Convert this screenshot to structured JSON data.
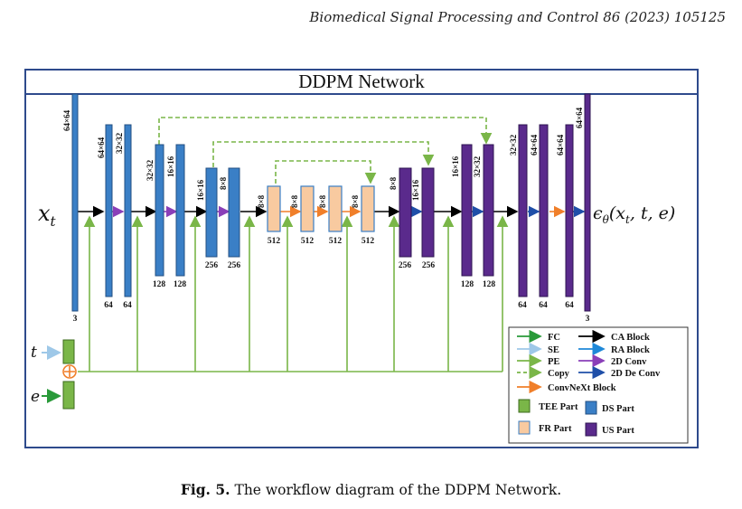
{
  "header": {
    "journal_ref": "Biomedical Signal Processing and Control 86 (2023) 105125"
  },
  "figure": {
    "title": "DDPM Network",
    "input_label": "x_t",
    "output_label": "ε_θ(x_t, t, e)",
    "t_label": "t",
    "e_label": "e",
    "encoder": {
      "res_labels": [
        "64×64",
        "64×64",
        "32×32",
        "32×32",
        "16×16",
        "16×16",
        "8×8"
      ],
      "channel_labels": [
        "3",
        "64",
        "64",
        "128",
        "128",
        "256",
        "256"
      ]
    },
    "bottleneck": {
      "res_labels": [
        "8×8",
        "8×8",
        "8×8",
        "8×8"
      ],
      "channel_labels": [
        "512",
        "512",
        "512",
        "512"
      ]
    },
    "decoder": {
      "res_labels": [
        "8×8",
        "16×16",
        "16×16",
        "32×32",
        "32×32",
        "64×64",
        "64×64",
        "64×64"
      ],
      "channel_labels": [
        "256",
        "256",
        "128",
        "128",
        "64",
        "64",
        "64",
        "3"
      ]
    },
    "legend": {
      "arrows_left": [
        "FC",
        "SE",
        "PE",
        "Copy"
      ],
      "arrows_right": [
        "CA Block",
        "RA Block",
        "2D Conv",
        "2D De Conv"
      ],
      "convnext": "ConvNeXt Block",
      "parts": [
        "TEE Part",
        "DS Part",
        "FR Part",
        "US Part"
      ]
    },
    "colors": {
      "ds": "#3a7fc6",
      "fr": "#f8caa0",
      "us": "#5a2a8c",
      "tee": "#7ab648",
      "copy": "#7ab648",
      "conv2d": "#8a3fb8",
      "deconv": "#1f4fa8",
      "ra": "#1e88d8",
      "convnext": "#f07f2a",
      "se": "#9ec8e8",
      "fc": "#2a9a3a",
      "plus": "#f07f2a"
    }
  },
  "caption": {
    "label": "Fig. 5.",
    "text": "The workflow diagram of the DDPM Network."
  }
}
